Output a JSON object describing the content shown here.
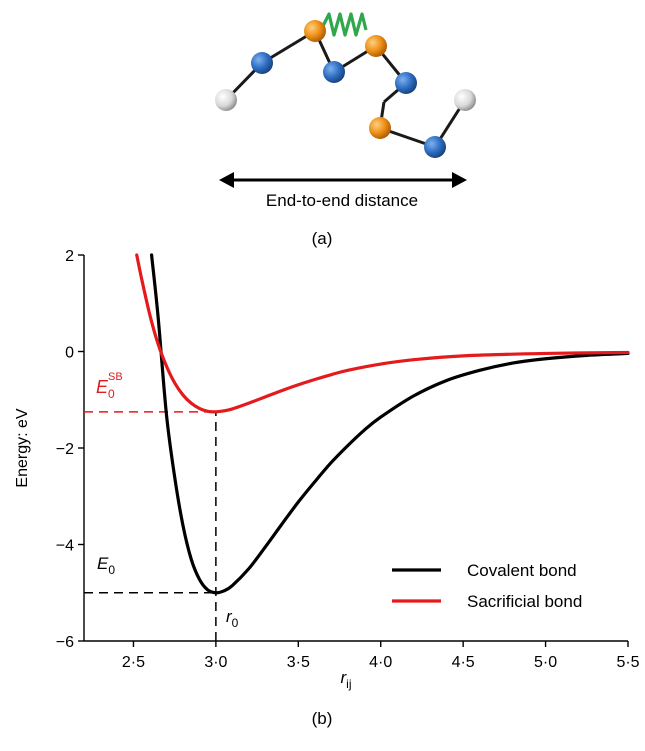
{
  "panel_a": {
    "arrow_label": "End-to-end distance",
    "caption": "(a)"
  },
  "panel_b": {
    "caption": "(b)"
  },
  "annotations": {
    "e0_sb_main": "E",
    "e0_sb_sub": "0",
    "e0_sb_sup": "SB",
    "e0_main": "E",
    "e0_sub": "0",
    "r0_main": "r",
    "r0_sub": "0"
  },
  "colors": {
    "covalent": "#000000",
    "sacrificial": "#e41a1c",
    "blue_bead": "#2e6fc4",
    "orange_bead": "#ee8f16",
    "grey_bead": "#d9d9d9",
    "spring": "#2ea84a"
  },
  "chart_data": {
    "type": "line",
    "xlabel_main": "r",
    "xlabel_sub": "ij",
    "ylabel": "Energy: eV",
    "xlim": [
      2.2,
      5.5
    ],
    "ylim": [
      -6,
      2
    ],
    "x_ticks": [
      2.5,
      3.0,
      3.5,
      4.0,
      4.5,
      5.0,
      5.5
    ],
    "x_tick_labels": [
      "2·5",
      "3·0",
      "3·5",
      "4·0",
      "4·5",
      "5·0",
      "5·5"
    ],
    "y_ticks": [
      -6,
      -4,
      -2,
      0,
      2
    ],
    "y_tick_labels": [
      "−6",
      "−4",
      "−2",
      "0",
      "2"
    ],
    "legend_position": "bottom-right",
    "series": [
      {
        "name": "Covalent bond",
        "color": "#000000",
        "points": [
          [
            2.61,
            2.0
          ],
          [
            2.65,
            0.7
          ],
          [
            2.7,
            -1.3
          ],
          [
            2.75,
            -2.6
          ],
          [
            2.8,
            -3.6
          ],
          [
            2.85,
            -4.3
          ],
          [
            2.9,
            -4.72
          ],
          [
            2.95,
            -4.94
          ],
          [
            3.0,
            -5.0
          ],
          [
            3.05,
            -4.96
          ],
          [
            3.1,
            -4.85
          ],
          [
            3.2,
            -4.5
          ],
          [
            3.3,
            -4.05
          ],
          [
            3.4,
            -3.58
          ],
          [
            3.5,
            -3.12
          ],
          [
            3.6,
            -2.7
          ],
          [
            3.7,
            -2.3
          ],
          [
            3.8,
            -1.95
          ],
          [
            3.9,
            -1.63
          ],
          [
            4.0,
            -1.36
          ],
          [
            4.2,
            -0.92
          ],
          [
            4.4,
            -0.6
          ],
          [
            4.6,
            -0.39
          ],
          [
            4.8,
            -0.24
          ],
          [
            5.0,
            -0.15
          ],
          [
            5.25,
            -0.08
          ],
          [
            5.5,
            -0.04
          ]
        ]
      },
      {
        "name": "Sacrificial bond",
        "color": "#e41a1c",
        "points": [
          [
            2.52,
            2.0
          ],
          [
            2.55,
            1.5
          ],
          [
            2.6,
            0.75
          ],
          [
            2.65,
            0.15
          ],
          [
            2.7,
            -0.3
          ],
          [
            2.75,
            -0.65
          ],
          [
            2.8,
            -0.9
          ],
          [
            2.85,
            -1.07
          ],
          [
            2.9,
            -1.18
          ],
          [
            2.95,
            -1.24
          ],
          [
            3.0,
            -1.25
          ],
          [
            3.05,
            -1.23
          ],
          [
            3.1,
            -1.19
          ],
          [
            3.2,
            -1.07
          ],
          [
            3.3,
            -0.94
          ],
          [
            3.4,
            -0.81
          ],
          [
            3.5,
            -0.69
          ],
          [
            3.6,
            -0.58
          ],
          [
            3.7,
            -0.48
          ],
          [
            3.8,
            -0.39
          ],
          [
            4.0,
            -0.26
          ],
          [
            4.2,
            -0.17
          ],
          [
            4.5,
            -0.09
          ],
          [
            5.0,
            -0.04
          ],
          [
            5.5,
            -0.02
          ]
        ]
      }
    ],
    "reference_lines": [
      {
        "orientation": "horizontal",
        "y": -1.25,
        "x_from": 2.2,
        "x_to": 3.0,
        "color": "#e41a1c"
      },
      {
        "orientation": "horizontal",
        "y": -5.0,
        "x_from": 2.2,
        "x_to": 3.0,
        "color": "#000000"
      },
      {
        "orientation": "vertical",
        "x": 3.0,
        "y_from": -6,
        "y_to": -1.25,
        "color": "#000000"
      }
    ]
  }
}
